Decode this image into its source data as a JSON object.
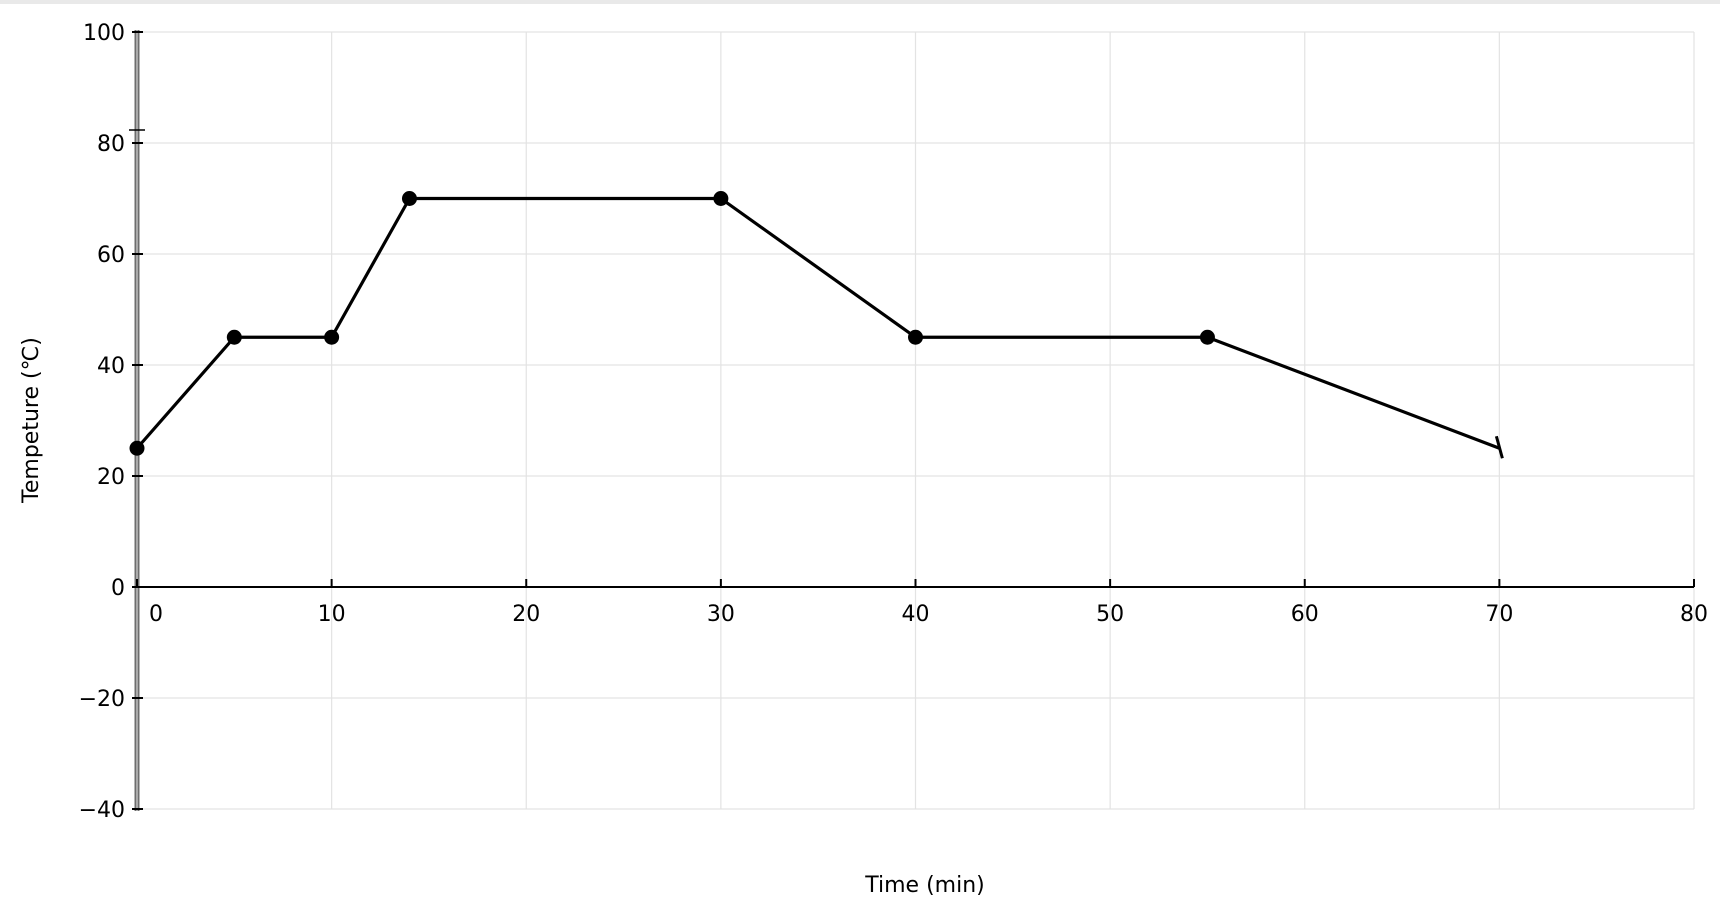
{
  "chart_data": {
    "type": "line",
    "title": "",
    "xlabel": "Time (min)",
    "ylabel": "Tempeture (℃)",
    "xlim": [
      0,
      80
    ],
    "ylim": [
      -40,
      100
    ],
    "grid": true,
    "x_ticks": [
      0,
      10,
      20,
      30,
      40,
      50,
      60,
      70,
      80
    ],
    "y_ticks": [
      -40,
      -20,
      0,
      20,
      40,
      60,
      80,
      100
    ],
    "x_tick_labels": [
      "0",
      "10",
      "20",
      "30",
      "40",
      "50",
      "60",
      "70",
      "80"
    ],
    "y_tick_labels": [
      "−40",
      "−20",
      "0",
      "20",
      "40",
      "60",
      "80",
      "100"
    ],
    "line_color": "#000000",
    "series": [
      {
        "points": [
          {
            "x": 0,
            "y": 25
          },
          {
            "x": 5,
            "y": 45
          },
          {
            "x": 10,
            "y": 45
          },
          {
            "x": 14,
            "y": 70
          },
          {
            "x": 30,
            "y": 70
          },
          {
            "x": 40,
            "y": 45
          },
          {
            "x": 55,
            "y": 45
          },
          {
            "x": 70,
            "y": 25
          }
        ],
        "markers": [
          true,
          true,
          true,
          true,
          true,
          true,
          true,
          false
        ]
      }
    ]
  }
}
